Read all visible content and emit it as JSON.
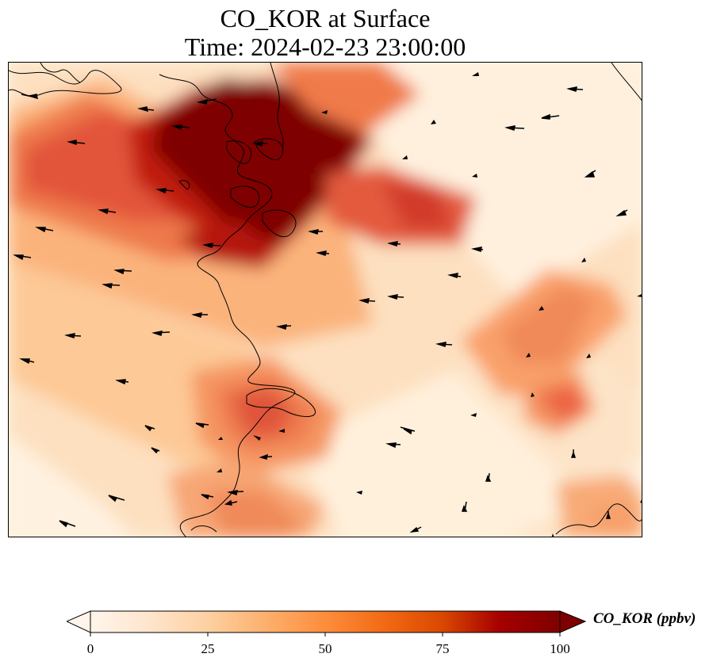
{
  "title": {
    "line1": "CO_KOR at Surface",
    "line2": "Time: 2024-02-23 23:00:00"
  },
  "colorbar": {
    "label": "CO_KOR (ppbv)",
    "ticks": [
      "0",
      "25",
      "50",
      "75",
      "100"
    ],
    "min": 0,
    "max": 100,
    "extend": "both",
    "colormap": [
      "#fff5eb",
      "#fee6ce",
      "#fdd0a2",
      "#fdae6b",
      "#fd8d3c",
      "#f16913",
      "#d94801",
      "#a60000",
      "#7f0000"
    ]
  },
  "map": {
    "field": "CO_KOR",
    "level": "Surface",
    "overlays": [
      "coastlines",
      "wind-vectors"
    ]
  }
}
